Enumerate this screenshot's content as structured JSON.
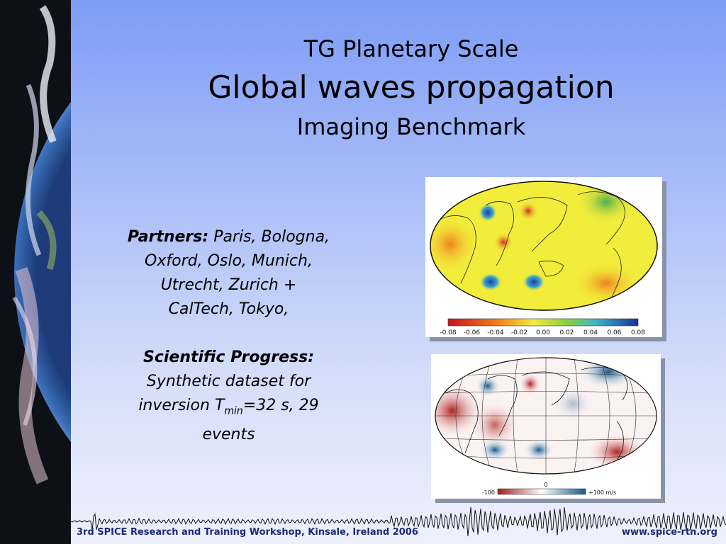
{
  "title": {
    "line1": "TG Planetary Scale",
    "line2": "Global waves propagation",
    "line3": "Imaging Benchmark"
  },
  "partners": {
    "label": "Partners:",
    "text_l1": "Paris, Bologna,",
    "text_l2": "Oxford, Oslo, Munich,",
    "text_l3": "Utrecht, Zurich +",
    "text_l4": "CalTech, Tokyo,"
  },
  "progress": {
    "label": "Scientific Progress:",
    "text_l1": "Synthetic dataset for",
    "text_l2_a": "inversion T",
    "text_l2_sub": "min",
    "text_l2_b": "=32 s, 29",
    "text_l3": "events"
  },
  "map1": {
    "colorbar_ticks": [
      "-0.08",
      "-0.06",
      "-0.04",
      "-0.02",
      "0.00",
      "0.02",
      "0.04",
      "0.06",
      "0.08"
    ]
  },
  "map2": {
    "colorbar_left": "-100",
    "colorbar_mid": "0",
    "colorbar_right": "+100 m/s"
  },
  "footer": {
    "left": "3rd SPICE Research and Training Workshop, Kinsale, Ireland 2006",
    "right": "www.spice-rtn.org"
  },
  "colors": {
    "background_top": "#7e9cf6",
    "footer_text": "#1a2a7a"
  }
}
